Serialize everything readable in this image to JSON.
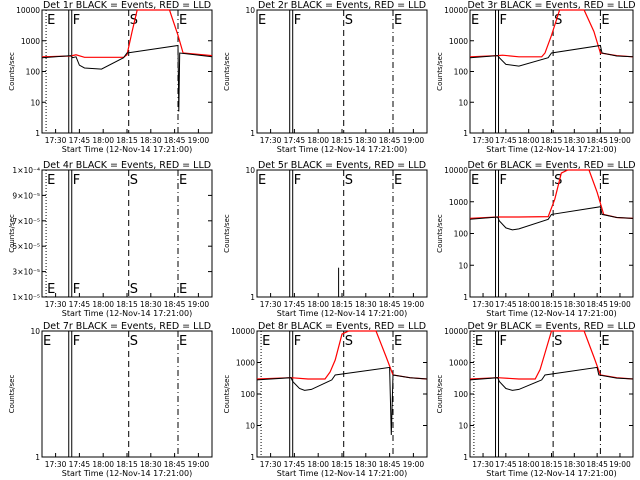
{
  "figure": {
    "xlabel": "Start Time (12-Nov-14 17:21:00)",
    "ylabel": "Counts/sec",
    "x_ticks": [
      "17:30",
      "17:45",
      "18:00",
      "18:15",
      "18:30",
      "18:45",
      "19:00"
    ],
    "colors": {
      "events": "#000000",
      "lld": "#ff0000",
      "background": "#ffffff",
      "axes": "#000000"
    }
  },
  "chart_data": [
    {
      "type": "line",
      "title": "Det 1r BLACK = Events, RED = LLD",
      "yscale": "log",
      "ylim": [
        1,
        10000
      ],
      "y_ticks": [
        "1",
        "10",
        "100",
        "1000",
        "10000"
      ],
      "markers": [
        {
          "label": "E",
          "t": 2.4,
          "style": "dotted"
        },
        {
          "label": "F",
          "t": 17.5,
          "style": "solid"
        },
        {
          "label": "S",
          "t": 51,
          "style": "dashed"
        },
        {
          "label": "E",
          "t": 80,
          "style": "dashdot"
        }
      ],
      "series": [
        {
          "color": "red",
          "points": [
            [
              0,
              300
            ],
            [
              17,
              320
            ],
            [
              20,
              350
            ],
            [
              25,
              290
            ],
            [
              48,
              290
            ],
            [
              50,
              350
            ],
            [
              53,
              2000
            ],
            [
              56,
              10000
            ],
            [
              75,
              10000
            ],
            [
              80,
              1500
            ],
            [
              83,
              400
            ],
            [
              100,
              330
            ]
          ]
        },
        {
          "color": "black",
          "points": [
            [
              0,
              280
            ],
            [
              17,
              330
            ],
            [
              18,
              280
            ],
            [
              20,
              300
            ],
            [
              22,
              160
            ],
            [
              25,
              130
            ],
            [
              35,
              120
            ],
            [
              48,
              280
            ],
            [
              50,
              400
            ],
            [
              80,
              700
            ],
            [
              80.5,
              5
            ],
            [
              81,
              400
            ],
            [
              90,
              350
            ],
            [
              100,
              300
            ]
          ]
        }
      ]
    },
    {
      "type": "line",
      "title": "Det 2r BLACK = Events, RED = LLD",
      "yscale": "log",
      "ylim": [
        1,
        10
      ],
      "y_ticks": [
        "1",
        "10"
      ],
      "markers": [
        {
          "label": "E",
          "t": 0,
          "style": "dotted"
        },
        {
          "label": "F",
          "t": 21,
          "style": "solid"
        },
        {
          "label": "S",
          "t": 51,
          "style": "dashed"
        },
        {
          "label": "E",
          "t": 80,
          "style": "dashdot"
        }
      ],
      "series": []
    },
    {
      "type": "line",
      "title": "Det 3r BLACK = Events, RED = LLD",
      "yscale": "log",
      "ylim": [
        1,
        10000
      ],
      "y_ticks": [
        "1",
        "10",
        "100",
        "1000",
        "10000"
      ],
      "markers": [
        {
          "label": "E",
          "t": 0,
          "style": "dotted"
        },
        {
          "label": "F",
          "t": 17.5,
          "style": "solid"
        },
        {
          "label": "S",
          "t": 51,
          "style": "dashed"
        },
        {
          "label": "E",
          "t": 80,
          "style": "dashdot"
        }
      ],
      "series": [
        {
          "color": "red",
          "points": [
            [
              0,
              300
            ],
            [
              17,
              330
            ],
            [
              20,
              340
            ],
            [
              30,
              300
            ],
            [
              44,
              300
            ],
            [
              46,
              400
            ],
            [
              50,
              1500
            ],
            [
              55,
              10000
            ],
            [
              70,
              10000
            ],
            [
              76,
              2000
            ],
            [
              80,
              400
            ],
            [
              90,
              330
            ],
            [
              100,
              300
            ]
          ]
        },
        {
          "color": "black",
          "points": [
            [
              0,
              280
            ],
            [
              17,
              330
            ],
            [
              18,
              280
            ],
            [
              22,
              170
            ],
            [
              30,
              150
            ],
            [
              48,
              280
            ],
            [
              50,
              400
            ],
            [
              80,
              700
            ],
            [
              81,
              400
            ],
            [
              90,
              320
            ],
            [
              100,
              300
            ]
          ]
        }
      ]
    },
    {
      "type": "line",
      "title": "Det 4r BLACK = Events, RED = LLD",
      "yscale": "log",
      "ylim": [
        1e-05,
        0.0001
      ],
      "y_ticks": [
        "1×10⁻⁵",
        "3×10⁻⁵",
        "5×10⁻⁵",
        "7×10⁻⁵",
        "9×10⁻⁵",
        "1×10⁻⁴"
      ],
      "markers": [
        {
          "label": "E",
          "t": 2.4,
          "style": "dotted"
        },
        {
          "label": "F",
          "t": 17.5,
          "style": "solid"
        },
        {
          "label": "S",
          "t": 51,
          "style": "dashed"
        },
        {
          "label": "E",
          "t": 80,
          "style": "dashdot"
        }
      ],
      "series": []
    },
    {
      "type": "line",
      "title": "Det 5r BLACK = Events, RED = LLD",
      "yscale": "log",
      "ylim": [
        1,
        10
      ],
      "y_ticks": [
        "1",
        "10"
      ],
      "markers": [
        {
          "label": "E",
          "t": 0,
          "style": "dotted"
        },
        {
          "label": "F",
          "t": 21,
          "style": "solid"
        },
        {
          "label": "S",
          "t": 51,
          "style": "dashed"
        },
        {
          "label": "E",
          "t": 80,
          "style": "dashdot"
        }
      ],
      "series": [
        {
          "color": "black",
          "points": [
            [
              48,
              1
            ],
            [
              48,
              1.7
            ]
          ]
        }
      ]
    },
    {
      "type": "line",
      "title": "Det 6r BLACK = Events, RED = LLD",
      "yscale": "log",
      "ylim": [
        1,
        10000
      ],
      "y_ticks": [
        "1",
        "10",
        "100",
        "1000",
        "10000"
      ],
      "markers": [
        {
          "label": "E",
          "t": 0,
          "style": "dotted"
        },
        {
          "label": "F",
          "t": 17.5,
          "style": "solid"
        },
        {
          "label": "S",
          "t": 51,
          "style": "dashed"
        },
        {
          "label": "E",
          "t": 80,
          "style": "dashdot"
        }
      ],
      "series": [
        {
          "color": "red",
          "points": [
            [
              0,
              300
            ],
            [
              17,
              330
            ],
            [
              30,
              330
            ],
            [
              48,
              340
            ],
            [
              52,
              1200
            ],
            [
              56,
              8000
            ],
            [
              60,
              10000
            ],
            [
              73,
              10000
            ],
            [
              78,
              2000
            ],
            [
              82,
              400
            ],
            [
              90,
              320
            ],
            [
              100,
              300
            ]
          ]
        },
        {
          "color": "black",
          "points": [
            [
              0,
              280
            ],
            [
              17,
              330
            ],
            [
              18,
              250
            ],
            [
              22,
              150
            ],
            [
              26,
              130
            ],
            [
              30,
              140
            ],
            [
              48,
              280
            ],
            [
              50,
              400
            ],
            [
              80,
              700
            ],
            [
              81,
              400
            ],
            [
              90,
              320
            ],
            [
              100,
              300
            ]
          ]
        }
      ]
    },
    {
      "type": "line",
      "title": "Det 7r BLACK = Events, RED = LLD",
      "yscale": "log",
      "ylim": [
        1,
        10
      ],
      "y_ticks": [
        "1",
        "10"
      ],
      "markers": [
        {
          "label": "E",
          "t": 0,
          "style": "dotted"
        },
        {
          "label": "F",
          "t": 17.5,
          "style": "solid"
        },
        {
          "label": "S",
          "t": 51,
          "style": "dashed"
        },
        {
          "label": "E",
          "t": 80,
          "style": "dashdot"
        }
      ],
      "series": []
    },
    {
      "type": "line",
      "title": "Det 8r BLACK = Events, RED = LLD",
      "yscale": "log",
      "ylim": [
        1,
        10000
      ],
      "y_ticks": [
        "1",
        "10",
        "100",
        "1000",
        "10000"
      ],
      "markers": [
        {
          "label": "E",
          "t": 2.4,
          "style": "dotted"
        },
        {
          "label": "F",
          "t": 21,
          "style": "solid"
        },
        {
          "label": "S",
          "t": 51,
          "style": "dashed"
        },
        {
          "label": "E",
          "t": 80,
          "style": "dashdot"
        }
      ],
      "series": [
        {
          "color": "red",
          "points": [
            [
              0,
              300
            ],
            [
              20,
              330
            ],
            [
              30,
              300
            ],
            [
              40,
              300
            ],
            [
              43,
              500
            ],
            [
              46,
              1200
            ],
            [
              50,
              8000
            ],
            [
              54,
              10000
            ],
            [
              70,
              10000
            ],
            [
              76,
              1500
            ],
            [
              80,
              400
            ],
            [
              90,
              330
            ],
            [
              100,
              300
            ]
          ]
        },
        {
          "color": "black",
          "points": [
            [
              0,
              280
            ],
            [
              20,
              330
            ],
            [
              21,
              250
            ],
            [
              25,
              150
            ],
            [
              28,
              130
            ],
            [
              32,
              140
            ],
            [
              44,
              280
            ],
            [
              46,
              400
            ],
            [
              78,
              700
            ],
            [
              79,
              5
            ],
            [
              80,
              400
            ],
            [
              90,
              330
            ],
            [
              100,
              300
            ]
          ]
        }
      ]
    },
    {
      "type": "line",
      "title": "Det 9r BLACK = Events, RED = LLD",
      "yscale": "log",
      "ylim": [
        1,
        10000
      ],
      "y_ticks": [
        "1",
        "10",
        "100",
        "1000",
        "10000"
      ],
      "markers": [
        {
          "label": "E",
          "t": 2.4,
          "style": "dotted"
        },
        {
          "label": "F",
          "t": 17.5,
          "style": "solid"
        },
        {
          "label": "S",
          "t": 51,
          "style": "dashed"
        },
        {
          "label": "E",
          "t": 80,
          "style": "dashdot"
        }
      ],
      "series": [
        {
          "color": "red",
          "points": [
            [
              0,
              300
            ],
            [
              17,
              330
            ],
            [
              30,
              300
            ],
            [
              40,
              300
            ],
            [
              43,
              600
            ],
            [
              46,
              2000
            ],
            [
              50,
              10000
            ],
            [
              70,
              10000
            ],
            [
              76,
              1500
            ],
            [
              80,
              400
            ],
            [
              90,
              330
            ],
            [
              100,
              300
            ]
          ]
        },
        {
          "color": "black",
          "points": [
            [
              0,
              280
            ],
            [
              17,
              330
            ],
            [
              18,
              250
            ],
            [
              22,
              150
            ],
            [
              26,
              130
            ],
            [
              30,
              140
            ],
            [
              44,
              280
            ],
            [
              46,
              400
            ],
            [
              78,
              700
            ],
            [
              79,
              400
            ],
            [
              90,
              320
            ],
            [
              100,
              300
            ]
          ]
        }
      ]
    }
  ]
}
